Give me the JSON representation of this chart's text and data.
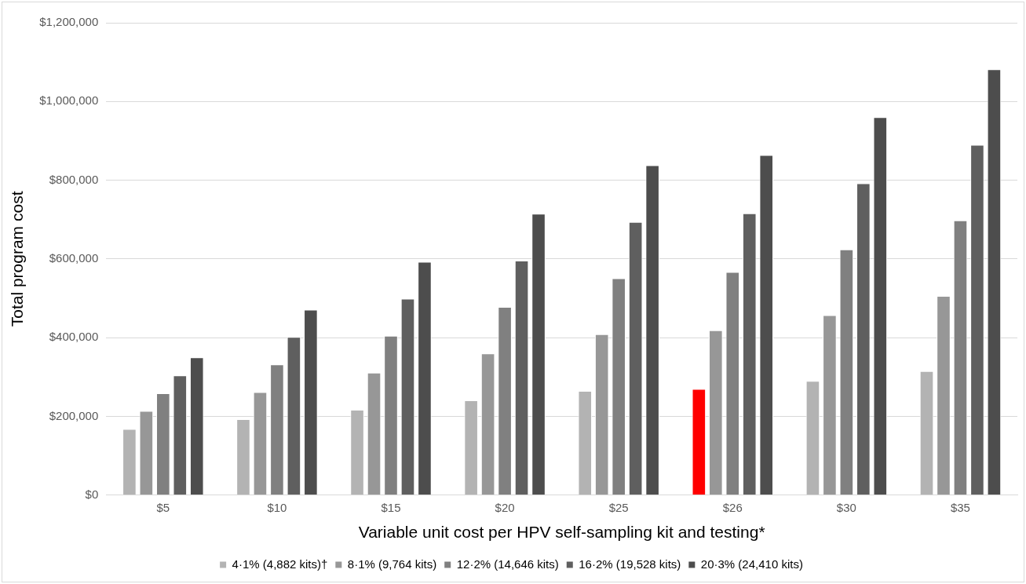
{
  "chart_data": {
    "type": "bar",
    "xlabel": "Variable unit cost per HPV self-sampling kit and testing*",
    "ylabel": "Total program cost",
    "categories": [
      "$5",
      "$10",
      "$15",
      "$20",
      "$25",
      "$26",
      "$30",
      "$35"
    ],
    "series": [
      {
        "name": "4·1% (4,882 kits)†",
        "color": "#b3b3b3",
        "colors": [
          "#b3b3b3",
          "#b3b3b3",
          "#b3b3b3",
          "#b3b3b3",
          "#b3b3b3",
          "#ff0000",
          "#b3b3b3",
          "#b3b3b3"
        ],
        "values": [
          168000,
          193000,
          217000,
          241000,
          265000,
          270000,
          290000,
          315000
        ]
      },
      {
        "name": "8·1% (9,764 kits)",
        "color": "#979797",
        "values": [
          214000,
          262000,
          311000,
          360000,
          409000,
          419000,
          457000,
          506000
        ]
      },
      {
        "name": "12·2% (14,646 kits)",
        "color": "#808080",
        "values": [
          259000,
          332000,
          405000,
          478000,
          551000,
          567000,
          624000,
          698000
        ]
      },
      {
        "name": "16·2% (19,528 kits)",
        "color": "#5f5f5f",
        "values": [
          304000,
          402000,
          499000,
          596000,
          694000,
          716000,
          792000,
          890000
        ]
      },
      {
        "name": "20·3% (24,410 kits)",
        "color": "#4d4d4d",
        "values": [
          350000,
          471000,
          593000,
          715000,
          838000,
          864000,
          960000,
          1082000
        ]
      }
    ],
    "ylim": [
      0,
      1200000
    ],
    "yticks": [
      {
        "value": 0,
        "label": "$0"
      },
      {
        "value": 200000,
        "label": "$200,000"
      },
      {
        "value": 400000,
        "label": "$400,000"
      },
      {
        "value": 600000,
        "label": "$600,000"
      },
      {
        "value": 800000,
        "label": "$800,000"
      },
      {
        "value": 1000000,
        "label": "$1,000,000"
      },
      {
        "value": 1200000,
        "label": "$1,200,000"
      }
    ],
    "grid": "y",
    "legend": "bottom"
  }
}
